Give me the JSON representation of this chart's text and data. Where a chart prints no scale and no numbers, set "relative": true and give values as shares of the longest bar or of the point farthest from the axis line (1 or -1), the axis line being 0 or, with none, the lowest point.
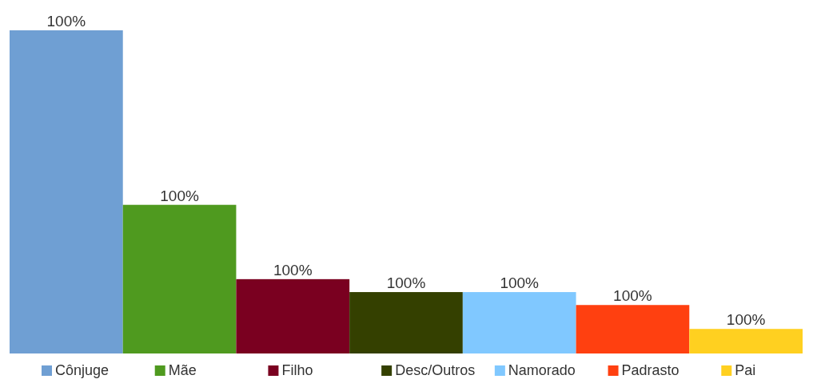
{
  "chart_data": {
    "type": "bar",
    "relative": true,
    "categories": [
      null
    ],
    "legend": "bottom",
    "annotations": [
      "100%",
      "100%",
      "100%",
      "100%",
      "100%",
      "100%",
      "100%"
    ],
    "series": [
      {
        "name": "Cônjuge",
        "color": "#6f9fd3",
        "values": [
          1
        ]
      },
      {
        "name": "Mãe",
        "color": "#4f9a1f",
        "values": [
          0.46
        ]
      },
      {
        "name": "Filho",
        "color": "#7a0020",
        "values": [
          0.23
        ]
      },
      {
        "name": "Desc/Outros",
        "color": "#344000",
        "values": [
          0.19
        ]
      },
      {
        "name": "Namorado",
        "color": "#80c8ff",
        "values": [
          0.19
        ]
      },
      {
        "name": "Padrasto",
        "color": "#ff4010",
        "values": [
          0.15
        ]
      },
      {
        "name": "Pai",
        "color": "#ffd020",
        "values": [
          0.076
        ]
      }
    ]
  }
}
